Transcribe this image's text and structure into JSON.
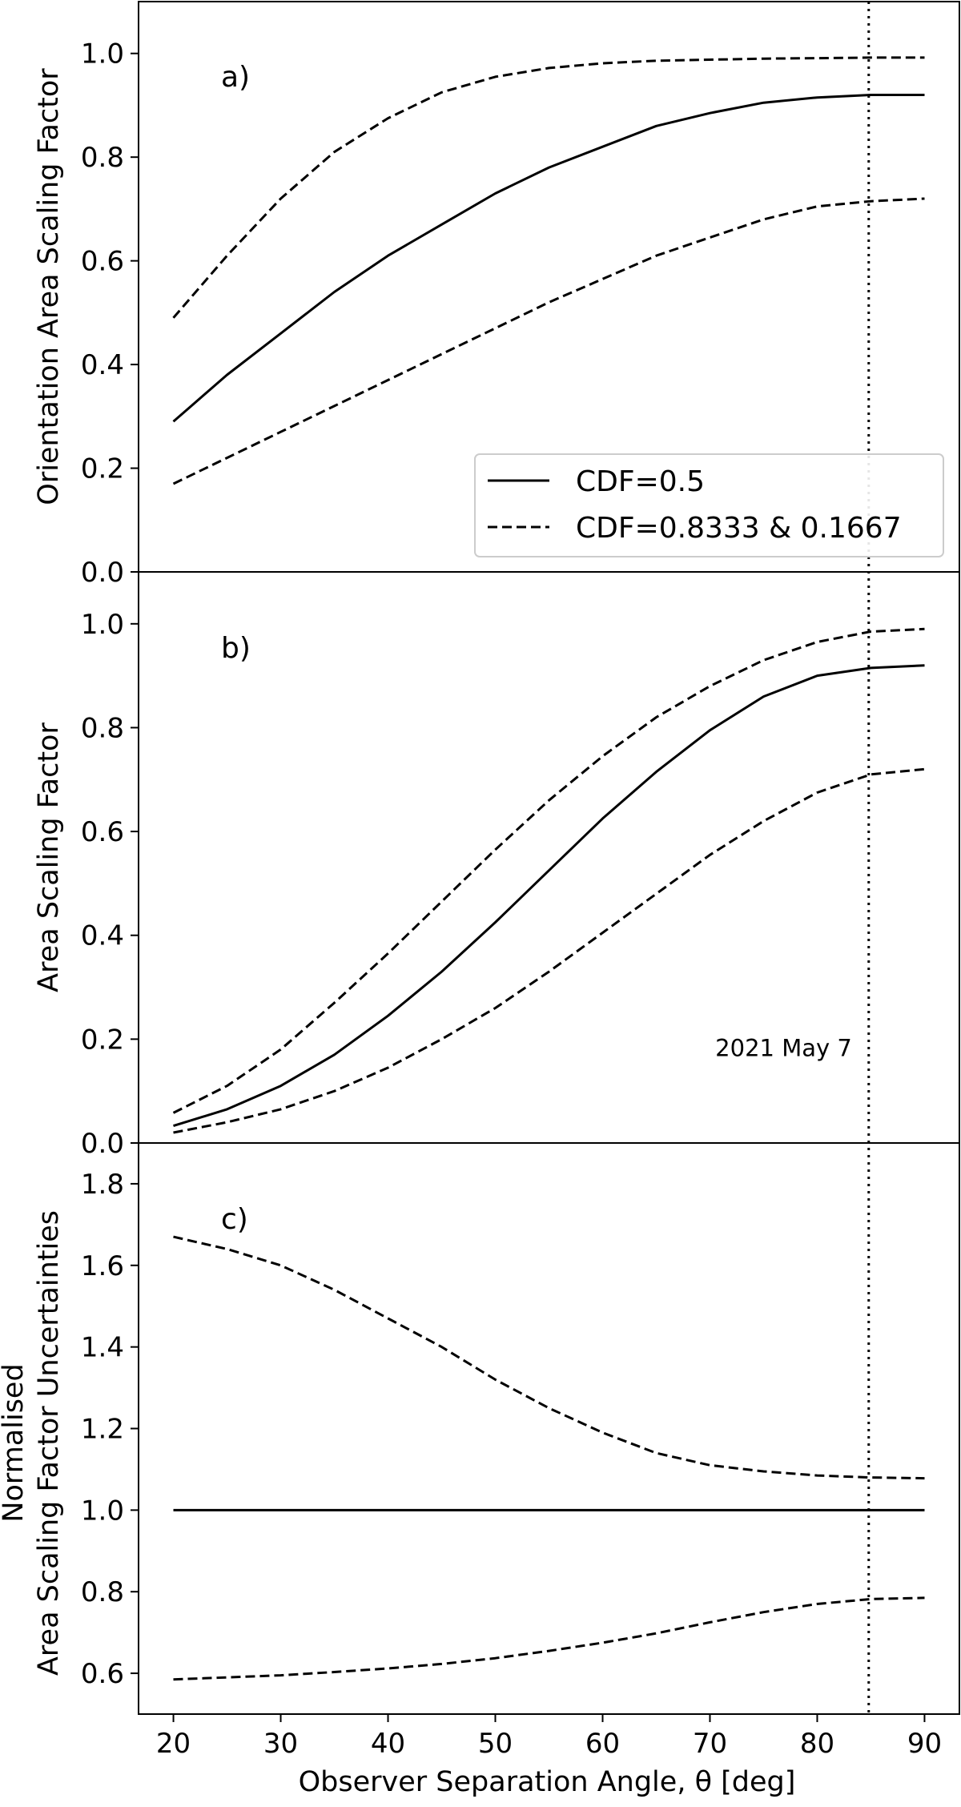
{
  "chart_data": {
    "type": "line",
    "xlabel": "Observer Separation Angle, θ [deg]",
    "xlim": [
      16.75,
      93.25
    ],
    "xticks": [
      20,
      30,
      40,
      50,
      60,
      70,
      80,
      90
    ],
    "vline": {
      "x": 84.8,
      "style": "dotted"
    },
    "legend": {
      "placement": "lower-right of panel a",
      "entries": [
        {
          "label": "CDF=0.5",
          "style": "solid"
        },
        {
          "label": "CDF=0.8333 & 0.1667",
          "style": "dashed"
        }
      ]
    },
    "panels": [
      {
        "label": "a)",
        "ylabel": "Orientation Area Scaling Factor",
        "ylim": [
          0,
          1.1
        ],
        "yticks": [
          0.0,
          0.2,
          0.4,
          0.6,
          0.8,
          1.0
        ],
        "x": [
          20,
          25,
          30,
          35,
          40,
          45,
          50,
          55,
          60,
          65,
          70,
          75,
          80,
          85,
          90
        ],
        "series": [
          {
            "style": "solid",
            "values": [
              0.29,
              0.38,
              0.46,
              0.54,
              0.61,
              0.67,
              0.73,
              0.78,
              0.82,
              0.86,
              0.885,
              0.905,
              0.915,
              0.92,
              0.92
            ]
          },
          {
            "style": "dashed",
            "values": [
              0.49,
              0.61,
              0.72,
              0.81,
              0.875,
              0.925,
              0.955,
              0.972,
              0.981,
              0.986,
              0.988,
              0.99,
              0.991,
              0.992,
              0.992
            ]
          },
          {
            "style": "dashed",
            "values": [
              0.17,
              0.22,
              0.27,
              0.32,
              0.37,
              0.42,
              0.47,
              0.52,
              0.565,
              0.61,
              0.645,
              0.68,
              0.705,
              0.715,
              0.72
            ]
          }
        ]
      },
      {
        "label": "b)",
        "ylabel": "Area Scaling Factor",
        "ylim": [
          0,
          1.1
        ],
        "yticks": [
          0.0,
          0.2,
          0.4,
          0.6,
          0.8,
          1.0
        ],
        "annotation": {
          "text": "2021 May 7",
          "x": 70.5,
          "y": 0.18
        },
        "x": [
          20,
          25,
          30,
          35,
          40,
          45,
          50,
          55,
          60,
          65,
          70,
          75,
          80,
          85,
          90
        ],
        "series": [
          {
            "style": "solid",
            "values": [
              0.033,
              0.065,
              0.11,
              0.17,
              0.245,
              0.33,
              0.425,
              0.525,
              0.625,
              0.715,
              0.795,
              0.86,
              0.9,
              0.915,
              0.92
            ]
          },
          {
            "style": "dashed",
            "values": [
              0.058,
              0.11,
              0.18,
              0.27,
              0.365,
              0.465,
              0.565,
              0.66,
              0.745,
              0.82,
              0.88,
              0.93,
              0.965,
              0.985,
              0.99
            ]
          },
          {
            "style": "dashed",
            "values": [
              0.02,
              0.04,
              0.065,
              0.1,
              0.145,
              0.2,
              0.26,
              0.33,
              0.405,
              0.48,
              0.555,
              0.62,
              0.675,
              0.71,
              0.72
            ]
          }
        ]
      },
      {
        "label": "c)",
        "ylabel_lines": [
          "Normalised",
          "Area Scaling Factor Uncertainties"
        ],
        "ylim": [
          0.5,
          1.9
        ],
        "yticks": [
          0.6,
          0.8,
          1.0,
          1.2,
          1.4,
          1.6,
          1.8
        ],
        "x": [
          20,
          25,
          30,
          35,
          40,
          45,
          50,
          55,
          60,
          65,
          70,
          75,
          80,
          85,
          90
        ],
        "series": [
          {
            "style": "solid",
            "values": [
              1.0,
              1.0,
              1.0,
              1.0,
              1.0,
              1.0,
              1.0,
              1.0,
              1.0,
              1.0,
              1.0,
              1.0,
              1.0,
              1.0,
              1.0
            ]
          },
          {
            "style": "dashed",
            "values": [
              1.67,
              1.64,
              1.6,
              1.54,
              1.47,
              1.4,
              1.32,
              1.25,
              1.19,
              1.14,
              1.11,
              1.095,
              1.085,
              1.08,
              1.078
            ]
          },
          {
            "style": "dashed",
            "values": [
              0.585,
              0.59,
              0.595,
              0.603,
              0.612,
              0.623,
              0.637,
              0.655,
              0.675,
              0.698,
              0.725,
              0.75,
              0.77,
              0.782,
              0.785
            ]
          }
        ]
      }
    ]
  }
}
